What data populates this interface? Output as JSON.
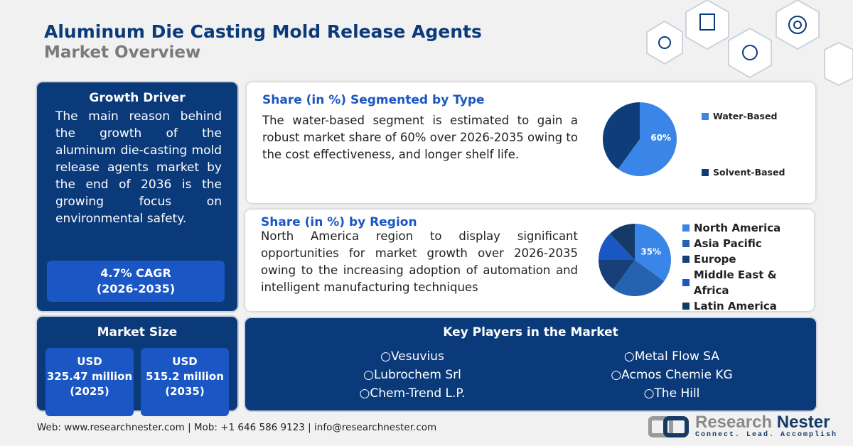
{
  "header": {
    "title": "Aluminum Die Casting Mold Release Agents",
    "subtitle": "Market Overview"
  },
  "growth_driver": {
    "heading": "Growth Driver",
    "text": "The main reason behind the growth of the aluminum die-casting mold release agents market by the end of 2036 is the growing focus on environmental safety.",
    "cagr": "4.7% CAGR",
    "cagr_period": "(2026-2035)"
  },
  "market_size": {
    "heading": "Market Size",
    "items": [
      {
        "currency": "USD",
        "value": "325.47 million",
        "year": "(2025)"
      },
      {
        "currency": "USD",
        "value": "515.2 million",
        "year": "(2035)"
      }
    ]
  },
  "type_segment": {
    "heading": "Share (in %) Segmented by Type",
    "text": "The water-based segment is estimated to gain a robust market share of 60% over 2026-2035 owing to the cost effectiveness, and longer shelf life.",
    "chart_data": {
      "type": "pie",
      "categories": [
        "Water-Based",
        "Solvent-Based"
      ],
      "values": [
        60,
        40
      ],
      "labels": [
        "60%",
        ""
      ],
      "colors": [
        "#3a86e8",
        "#0f3d7a"
      ]
    }
  },
  "region_segment": {
    "heading": "Share (in %) by Region",
    "text": "North America region to display significant opportunities for market growth over 2026-2035 owing to the increasing adoption of automation and intelligent manufacturing techniques",
    "chart_data": {
      "type": "pie",
      "categories": [
        "North America",
        "Asia Pacific",
        "Europe",
        "Middle East & Africa",
        "Latin America"
      ],
      "values": [
        35,
        25,
        15,
        13,
        12
      ],
      "labels": [
        "35%",
        "",
        "",
        "",
        ""
      ],
      "colors": [
        "#3a86e8",
        "#2563b0",
        "#173f78",
        "#1a56c4",
        "#163a66"
      ]
    }
  },
  "key_players": {
    "heading": "Key Players in the Market",
    "items": [
      "Vesuvius",
      "Metal Flow SA",
      "Lubrochem Srl",
      "Acmos Chemie KG",
      "Chem-Trend L.P.",
      "The Hill"
    ]
  },
  "footer": {
    "contact": "Web: www.researchnester.com | Mob: +1 646 586 9123 | info@researchnester.com"
  },
  "logo": {
    "name_a": "Research",
    "name_b": "Nester",
    "tagline": "Connect. Lead. Accomplish"
  }
}
